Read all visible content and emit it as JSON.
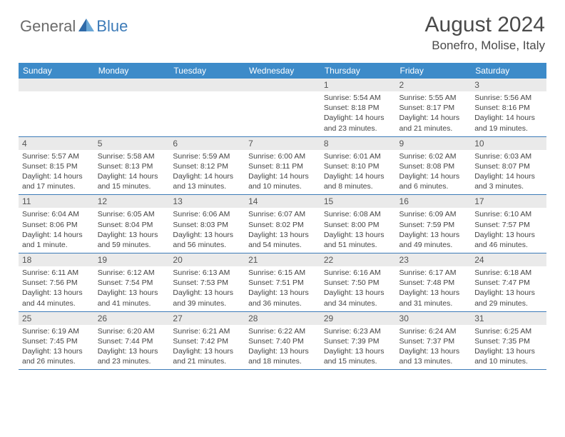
{
  "brand": {
    "part1": "General",
    "part2": "Blue"
  },
  "title": "August 2024",
  "location": "Bonefro, Molise, Italy",
  "colors": {
    "header_bg": "#3d8bc9",
    "header_text": "#ffffff",
    "brand_gray": "#6b6b6b",
    "brand_blue": "#3d7bb8",
    "daynum_bg": "#eaeaea",
    "border": "#3d7bb8",
    "text": "#444444",
    "background": "#ffffff"
  },
  "typography": {
    "title_fontsize": 30,
    "location_fontsize": 17,
    "header_fontsize": 12,
    "daynum_fontsize": 12,
    "info_fontsize": 10.5
  },
  "dayNames": [
    "Sunday",
    "Monday",
    "Tuesday",
    "Wednesday",
    "Thursday",
    "Friday",
    "Saturday"
  ],
  "weeks": [
    [
      {
        "num": "",
        "sunrise": "",
        "sunset": "",
        "daylight": ""
      },
      {
        "num": "",
        "sunrise": "",
        "sunset": "",
        "daylight": ""
      },
      {
        "num": "",
        "sunrise": "",
        "sunset": "",
        "daylight": ""
      },
      {
        "num": "",
        "sunrise": "",
        "sunset": "",
        "daylight": ""
      },
      {
        "num": "1",
        "sunrise": "Sunrise: 5:54 AM",
        "sunset": "Sunset: 8:18 PM",
        "daylight": "Daylight: 14 hours and 23 minutes."
      },
      {
        "num": "2",
        "sunrise": "Sunrise: 5:55 AM",
        "sunset": "Sunset: 8:17 PM",
        "daylight": "Daylight: 14 hours and 21 minutes."
      },
      {
        "num": "3",
        "sunrise": "Sunrise: 5:56 AM",
        "sunset": "Sunset: 8:16 PM",
        "daylight": "Daylight: 14 hours and 19 minutes."
      }
    ],
    [
      {
        "num": "4",
        "sunrise": "Sunrise: 5:57 AM",
        "sunset": "Sunset: 8:15 PM",
        "daylight": "Daylight: 14 hours and 17 minutes."
      },
      {
        "num": "5",
        "sunrise": "Sunrise: 5:58 AM",
        "sunset": "Sunset: 8:13 PM",
        "daylight": "Daylight: 14 hours and 15 minutes."
      },
      {
        "num": "6",
        "sunrise": "Sunrise: 5:59 AM",
        "sunset": "Sunset: 8:12 PM",
        "daylight": "Daylight: 14 hours and 13 minutes."
      },
      {
        "num": "7",
        "sunrise": "Sunrise: 6:00 AM",
        "sunset": "Sunset: 8:11 PM",
        "daylight": "Daylight: 14 hours and 10 minutes."
      },
      {
        "num": "8",
        "sunrise": "Sunrise: 6:01 AM",
        "sunset": "Sunset: 8:10 PM",
        "daylight": "Daylight: 14 hours and 8 minutes."
      },
      {
        "num": "9",
        "sunrise": "Sunrise: 6:02 AM",
        "sunset": "Sunset: 8:08 PM",
        "daylight": "Daylight: 14 hours and 6 minutes."
      },
      {
        "num": "10",
        "sunrise": "Sunrise: 6:03 AM",
        "sunset": "Sunset: 8:07 PM",
        "daylight": "Daylight: 14 hours and 3 minutes."
      }
    ],
    [
      {
        "num": "11",
        "sunrise": "Sunrise: 6:04 AM",
        "sunset": "Sunset: 8:06 PM",
        "daylight": "Daylight: 14 hours and 1 minute."
      },
      {
        "num": "12",
        "sunrise": "Sunrise: 6:05 AM",
        "sunset": "Sunset: 8:04 PM",
        "daylight": "Daylight: 13 hours and 59 minutes."
      },
      {
        "num": "13",
        "sunrise": "Sunrise: 6:06 AM",
        "sunset": "Sunset: 8:03 PM",
        "daylight": "Daylight: 13 hours and 56 minutes."
      },
      {
        "num": "14",
        "sunrise": "Sunrise: 6:07 AM",
        "sunset": "Sunset: 8:02 PM",
        "daylight": "Daylight: 13 hours and 54 minutes."
      },
      {
        "num": "15",
        "sunrise": "Sunrise: 6:08 AM",
        "sunset": "Sunset: 8:00 PM",
        "daylight": "Daylight: 13 hours and 51 minutes."
      },
      {
        "num": "16",
        "sunrise": "Sunrise: 6:09 AM",
        "sunset": "Sunset: 7:59 PM",
        "daylight": "Daylight: 13 hours and 49 minutes."
      },
      {
        "num": "17",
        "sunrise": "Sunrise: 6:10 AM",
        "sunset": "Sunset: 7:57 PM",
        "daylight": "Daylight: 13 hours and 46 minutes."
      }
    ],
    [
      {
        "num": "18",
        "sunrise": "Sunrise: 6:11 AM",
        "sunset": "Sunset: 7:56 PM",
        "daylight": "Daylight: 13 hours and 44 minutes."
      },
      {
        "num": "19",
        "sunrise": "Sunrise: 6:12 AM",
        "sunset": "Sunset: 7:54 PM",
        "daylight": "Daylight: 13 hours and 41 minutes."
      },
      {
        "num": "20",
        "sunrise": "Sunrise: 6:13 AM",
        "sunset": "Sunset: 7:53 PM",
        "daylight": "Daylight: 13 hours and 39 minutes."
      },
      {
        "num": "21",
        "sunrise": "Sunrise: 6:15 AM",
        "sunset": "Sunset: 7:51 PM",
        "daylight": "Daylight: 13 hours and 36 minutes."
      },
      {
        "num": "22",
        "sunrise": "Sunrise: 6:16 AM",
        "sunset": "Sunset: 7:50 PM",
        "daylight": "Daylight: 13 hours and 34 minutes."
      },
      {
        "num": "23",
        "sunrise": "Sunrise: 6:17 AM",
        "sunset": "Sunset: 7:48 PM",
        "daylight": "Daylight: 13 hours and 31 minutes."
      },
      {
        "num": "24",
        "sunrise": "Sunrise: 6:18 AM",
        "sunset": "Sunset: 7:47 PM",
        "daylight": "Daylight: 13 hours and 29 minutes."
      }
    ],
    [
      {
        "num": "25",
        "sunrise": "Sunrise: 6:19 AM",
        "sunset": "Sunset: 7:45 PM",
        "daylight": "Daylight: 13 hours and 26 minutes."
      },
      {
        "num": "26",
        "sunrise": "Sunrise: 6:20 AM",
        "sunset": "Sunset: 7:44 PM",
        "daylight": "Daylight: 13 hours and 23 minutes."
      },
      {
        "num": "27",
        "sunrise": "Sunrise: 6:21 AM",
        "sunset": "Sunset: 7:42 PM",
        "daylight": "Daylight: 13 hours and 21 minutes."
      },
      {
        "num": "28",
        "sunrise": "Sunrise: 6:22 AM",
        "sunset": "Sunset: 7:40 PM",
        "daylight": "Daylight: 13 hours and 18 minutes."
      },
      {
        "num": "29",
        "sunrise": "Sunrise: 6:23 AM",
        "sunset": "Sunset: 7:39 PM",
        "daylight": "Daylight: 13 hours and 15 minutes."
      },
      {
        "num": "30",
        "sunrise": "Sunrise: 6:24 AM",
        "sunset": "Sunset: 7:37 PM",
        "daylight": "Daylight: 13 hours and 13 minutes."
      },
      {
        "num": "31",
        "sunrise": "Sunrise: 6:25 AM",
        "sunset": "Sunset: 7:35 PM",
        "daylight": "Daylight: 13 hours and 10 minutes."
      }
    ]
  ]
}
